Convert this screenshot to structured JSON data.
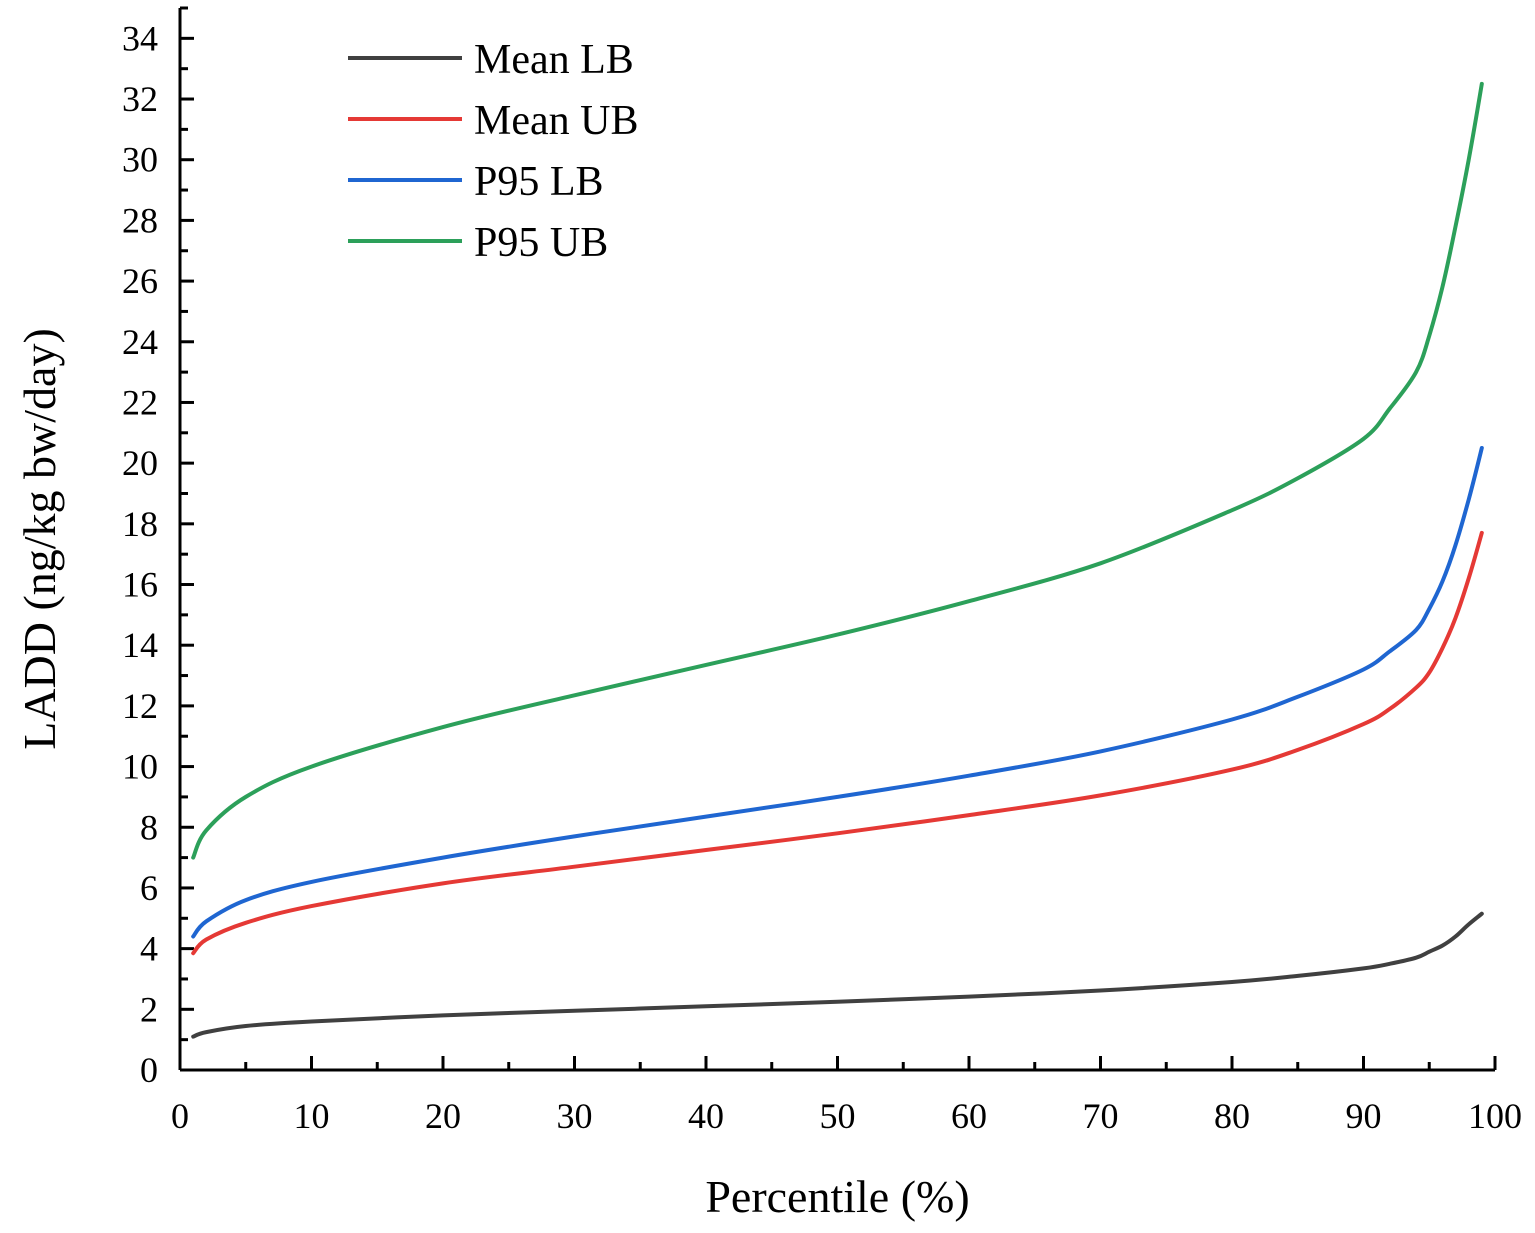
{
  "chart_data": {
    "type": "line",
    "title": "",
    "xlabel": "Percentile (%)",
    "ylabel": "LADD (ng/kg bw/day)",
    "xlim": [
      0,
      100
    ],
    "ylim": [
      0,
      35
    ],
    "xticks": [
      0,
      10,
      20,
      30,
      40,
      50,
      60,
      70,
      80,
      90,
      100
    ],
    "xtick_labels": [
      "0",
      "10",
      "20",
      "30",
      "40",
      "50",
      "60",
      "70",
      "80",
      "90",
      "100"
    ],
    "yticks": [
      0,
      2,
      4,
      6,
      8,
      10,
      12,
      14,
      16,
      18,
      20,
      22,
      24,
      26,
      28,
      30,
      32,
      34
    ],
    "ytick_labels": [
      "0",
      "2",
      "4",
      "6",
      "8",
      "10",
      "12",
      "14",
      "16",
      "18",
      "20",
      "22",
      "24",
      "26",
      "28",
      "30",
      "32",
      "34"
    ],
    "x_minor_step": 5,
    "y_minor_step": 1,
    "grid": false,
    "legend_position": "top-left",
    "x": [
      1,
      2,
      5,
      10,
      20,
      30,
      40,
      50,
      60,
      70,
      80,
      85,
      90,
      92,
      94,
      95,
      96,
      97,
      98,
      99
    ],
    "series": [
      {
        "name": "Mean LB",
        "color": "#404040",
        "values": [
          1.1,
          1.25,
          1.45,
          1.6,
          1.8,
          1.95,
          2.1,
          2.25,
          2.42,
          2.62,
          2.9,
          3.1,
          3.35,
          3.5,
          3.7,
          3.9,
          4.1,
          4.4,
          4.8,
          5.15
        ]
      },
      {
        "name": "Mean UB",
        "color": "#e53935",
        "values": [
          3.85,
          4.3,
          4.85,
          5.4,
          6.15,
          6.7,
          7.25,
          7.8,
          8.4,
          9.05,
          9.9,
          10.55,
          11.4,
          11.9,
          12.6,
          13.1,
          13.9,
          14.9,
          16.2,
          17.7
        ]
      },
      {
        "name": "P95  LB",
        "color": "#1f66d1",
        "values": [
          4.4,
          4.9,
          5.6,
          6.2,
          7.0,
          7.7,
          8.35,
          9.0,
          9.7,
          10.5,
          11.55,
          12.3,
          13.2,
          13.8,
          14.5,
          15.2,
          16.1,
          17.3,
          18.8,
          20.5
        ]
      },
      {
        "name": "P95  UB",
        "color": "#2ca05a",
        "values": [
          7.0,
          7.9,
          9.0,
          10.0,
          11.3,
          12.35,
          13.35,
          14.35,
          15.45,
          16.7,
          18.45,
          19.5,
          20.8,
          21.8,
          23.0,
          24.2,
          25.8,
          27.8,
          30.0,
          32.5
        ]
      }
    ]
  }
}
